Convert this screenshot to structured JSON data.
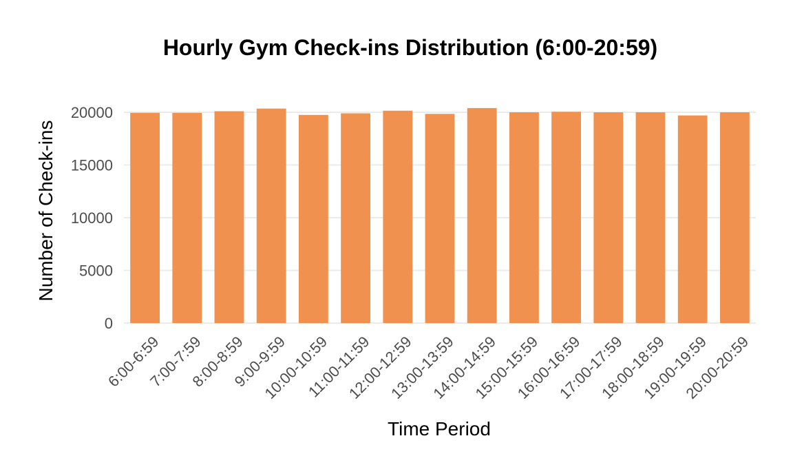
{
  "chart_data": {
    "type": "bar",
    "title": "Hourly Gym Check-ins Distribution (6:00-20:59)",
    "xlabel": "Time Period",
    "ylabel": "Number of Check-ins",
    "categories": [
      "6:00-6:59",
      "7:00-7:59",
      "8:00-8:59",
      "9:00-9:59",
      "10:00-10:59",
      "11:00-11:59",
      "12:00-12:59",
      "13:00-13:59",
      "14:00-14:59",
      "15:00-15:59",
      "16:00-16:59",
      "17:00-17:59",
      "18:00-18:59",
      "19:00-19:59",
      "20:00-20:59"
    ],
    "values": [
      19950,
      19950,
      20100,
      20350,
      19750,
      19900,
      20150,
      19850,
      20400,
      20000,
      20050,
      20000,
      20000,
      19700,
      20000
    ],
    "ylim": [
      0,
      20000
    ],
    "yticks": [
      0,
      5000,
      10000,
      15000,
      20000
    ],
    "grid": true,
    "bar_color": "#F0914F"
  }
}
